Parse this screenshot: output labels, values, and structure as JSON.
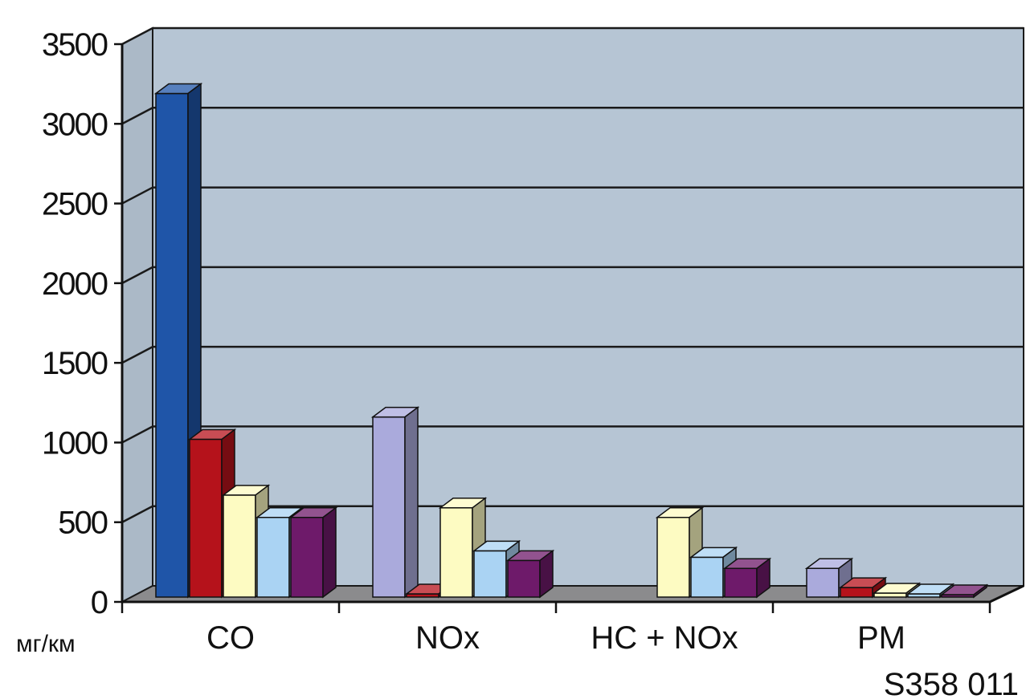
{
  "chart_data": {
    "type": "bar",
    "categories": [
      "CO",
      "NOx",
      "HC + NOx",
      "PM"
    ],
    "series": [
      {
        "color": "#1f55a8",
        "values": [
          3160,
          null,
          null,
          null
        ]
      },
      {
        "color": "#b5121b",
        "values": [
          990,
          20,
          null,
          60
        ]
      },
      {
        "color": "#fdfbc2",
        "values": [
          640,
          560,
          500,
          25
        ]
      },
      {
        "color": "#aad3f3",
        "values": [
          500,
          290,
          250,
          20
        ]
      },
      {
        "color": "#6e1a6a",
        "values": [
          500,
          230,
          180,
          15
        ]
      },
      {
        "color": "#aaaadc",
        "values": [
          null,
          1130,
          null,
          180
        ]
      }
    ],
    "ylim": [
      0,
      3500
    ],
    "yticks": [
      0,
      500,
      1000,
      1500,
      2000,
      2500,
      3000,
      3500
    ],
    "ylabel": "мг/км",
    "grid": true
  },
  "figure_code": "S358  011",
  "colors": {
    "wall": "#b6c5d4",
    "floor": "#8b8b8d",
    "grid": "#1a1a1a"
  }
}
